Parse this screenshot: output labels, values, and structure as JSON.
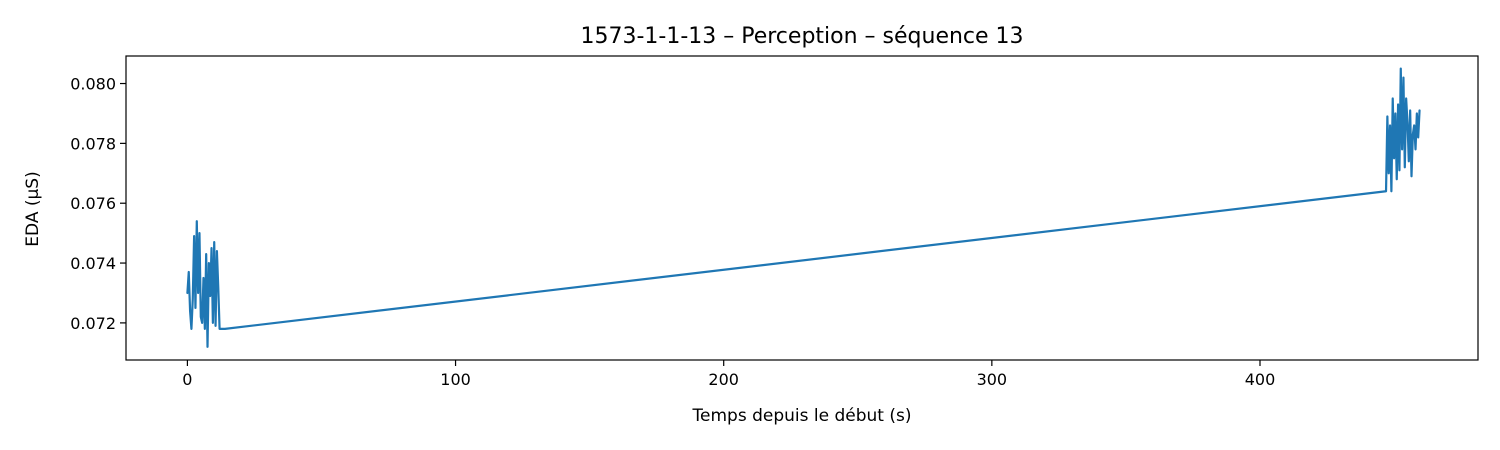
{
  "chart_data": {
    "type": "line",
    "title": "1573-1-1-13 – Perception – séquence 13",
    "xlabel": "Temps depuis le début (s)",
    "ylabel": "EDA (µS)",
    "xlim": [
      -22.9,
      481.3
    ],
    "ylim": [
      0.07076,
      0.08092
    ],
    "xticks": [
      0,
      100,
      200,
      300,
      400
    ],
    "xtick_labels": [
      "0",
      "100",
      "200",
      "300",
      "400"
    ],
    "yticks": [
      0.072,
      0.074,
      0.076,
      0.078,
      0.08
    ],
    "ytick_labels": [
      "0.072",
      "0.074",
      "0.076",
      "0.078",
      "0.080"
    ],
    "grid": false,
    "series": [
      {
        "color": "#1f77b4",
        "x": [
          0.0,
          0.5,
          1.0,
          1.5,
          2.0,
          2.5,
          3.0,
          3.5,
          4.0,
          4.5,
          5.0,
          5.5,
          6.0,
          6.5,
          7.0,
          7.5,
          8.0,
          8.5,
          9.0,
          9.5,
          10.0,
          10.5,
          11.0,
          11.5,
          12.0,
          12.5,
          13.0,
          13.5,
          14.0,
          447.0,
          447.5,
          448.0,
          448.5,
          449.0,
          449.5,
          450.0,
          450.5,
          451.0,
          451.5,
          452.0,
          452.5,
          453.0,
          453.5,
          454.0,
          454.5,
          455.0,
          455.5,
          456.0,
          456.5,
          457.0,
          457.5,
          458.0,
          458.5,
          459.0,
          459.5
        ],
        "y": [
          0.073,
          0.0737,
          0.0724,
          0.0718,
          0.0728,
          0.0749,
          0.0725,
          0.0754,
          0.073,
          0.075,
          0.0722,
          0.072,
          0.0735,
          0.0718,
          0.0743,
          0.0712,
          0.074,
          0.0729,
          0.0745,
          0.072,
          0.0747,
          0.0719,
          0.0744,
          0.0732,
          0.0718,
          0.0718,
          0.0718,
          0.0718,
          0.0718,
          0.0764,
          0.0789,
          0.077,
          0.0786,
          0.0764,
          0.0795,
          0.0775,
          0.079,
          0.0768,
          0.0793,
          0.0771,
          0.0805,
          0.0778,
          0.0802,
          0.0772,
          0.0795,
          0.0787,
          0.0774,
          0.0791,
          0.0769,
          0.0783,
          0.0786,
          0.0778,
          0.079,
          0.0782,
          0.0791
        ]
      }
    ]
  }
}
